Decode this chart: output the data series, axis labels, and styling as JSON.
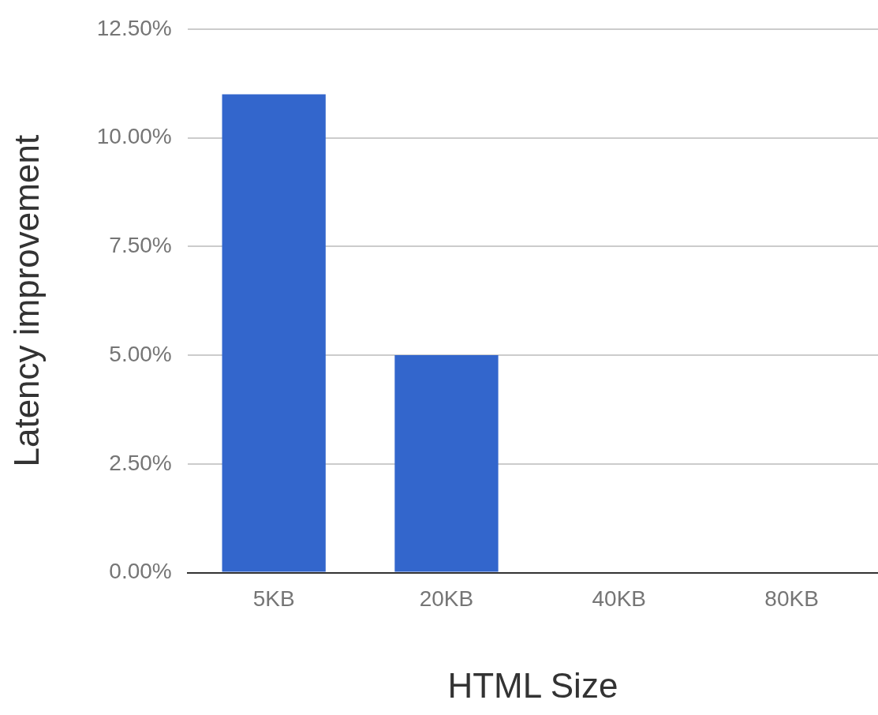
{
  "chart_data": {
    "type": "bar",
    "xlabel": "HTML Size",
    "ylabel": "Latency improvement",
    "categories": [
      "5KB",
      "20KB",
      "40KB",
      "80KB"
    ],
    "series": [
      {
        "color": "#3366cc",
        "values": [
          11.0,
          5.0,
          0,
          0
        ]
      }
    ],
    "ylim": [
      0,
      12.5
    ],
    "yticks": [
      {
        "value": 0,
        "label": "0.00%"
      },
      {
        "value": 2.5,
        "label": "2.50%"
      },
      {
        "value": 5,
        "label": "5.00%"
      },
      {
        "value": 7.5,
        "label": "7.50%"
      },
      {
        "value": 10,
        "label": "10.00%"
      },
      {
        "value": 12.5,
        "label": "12.50%"
      }
    ],
    "grid": "y",
    "legend": false
  }
}
